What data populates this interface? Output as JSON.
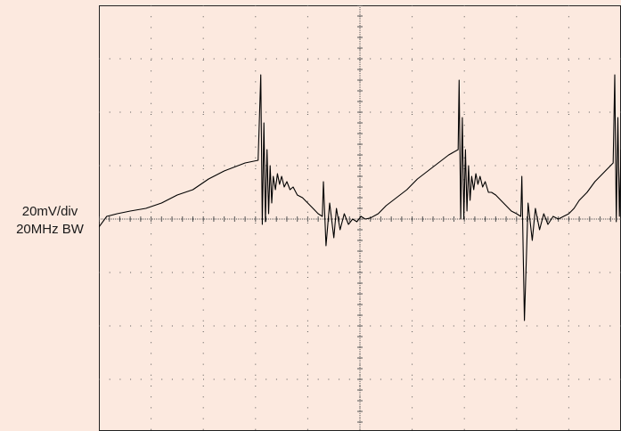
{
  "chart_data": {
    "type": "line",
    "title": "",
    "xlabel": "",
    "ylabel": "",
    "annotations": [
      "20mV/div",
      "20MHz BW"
    ],
    "x_divisions": 10,
    "y_divisions": 8,
    "xlim": [
      0,
      10
    ],
    "ylim": [
      -4,
      4
    ],
    "grid": true,
    "trace_color": "#000000",
    "grid_color": "#555555",
    "background_color": "#fce9df",
    "series": [
      {
        "name": "",
        "x": [
          0.0,
          0.15,
          0.35,
          0.6,
          0.9,
          1.2,
          1.5,
          1.8,
          2.1,
          2.4,
          2.8,
          3.05,
          3.1,
          3.13,
          3.16,
          3.19,
          3.22,
          3.25,
          3.28,
          3.31,
          3.34,
          3.38,
          3.42,
          3.46,
          3.5,
          3.55,
          3.6,
          3.66,
          3.72,
          3.8,
          3.9,
          4.0,
          4.1,
          4.2,
          4.28,
          4.3,
          4.35,
          4.42,
          4.5,
          4.55,
          4.62,
          4.7,
          4.78,
          4.86,
          4.94,
          5.02,
          5.1,
          5.2,
          5.35,
          5.5,
          5.7,
          5.9,
          6.1,
          6.3,
          6.5,
          6.7,
          6.88,
          6.9,
          6.93,
          6.96,
          6.99,
          7.02,
          7.05,
          7.08,
          7.11,
          7.14,
          7.18,
          7.22,
          7.26,
          7.3,
          7.35,
          7.4,
          7.46,
          7.52,
          7.6,
          7.7,
          7.8,
          7.9,
          8.0,
          8.08,
          8.1,
          8.15,
          8.22,
          8.3,
          8.36,
          8.44,
          8.52,
          8.6,
          8.7,
          8.8,
          8.9,
          9.0,
          9.1,
          9.2,
          9.35,
          9.5,
          9.7,
          9.85,
          9.88,
          9.91,
          9.94,
          9.97,
          10.0
        ],
        "y": [
          -0.15,
          0.05,
          0.1,
          0.15,
          0.2,
          0.3,
          0.45,
          0.55,
          0.75,
          0.9,
          1.05,
          1.1,
          2.7,
          -0.1,
          1.8,
          -0.05,
          1.3,
          0.1,
          1.0,
          0.3,
          0.8,
          0.55,
          0.85,
          0.65,
          0.8,
          0.6,
          0.7,
          0.55,
          0.6,
          0.45,
          0.4,
          0.3,
          0.2,
          0.1,
          0.05,
          0.7,
          -0.5,
          0.3,
          -0.35,
          0.2,
          -0.2,
          0.1,
          -0.1,
          0.0,
          -0.05,
          0.05,
          0.0,
          0.02,
          0.1,
          0.25,
          0.4,
          0.55,
          0.75,
          0.9,
          1.05,
          1.2,
          1.3,
          2.6,
          0.0,
          1.9,
          0.0,
          1.3,
          0.15,
          1.0,
          0.35,
          0.8,
          0.55,
          0.85,
          0.65,
          0.8,
          0.6,
          0.7,
          0.5,
          0.5,
          0.45,
          0.35,
          0.25,
          0.15,
          0.1,
          0.05,
          0.8,
          -1.9,
          0.3,
          -0.4,
          0.2,
          -0.2,
          0.1,
          -0.1,
          0.05,
          0.0,
          0.05,
          0.1,
          0.2,
          0.35,
          0.5,
          0.7,
          0.9,
          1.05,
          2.7,
          -0.05,
          1.9,
          0.05,
          1.3
        ]
      }
    ]
  }
}
